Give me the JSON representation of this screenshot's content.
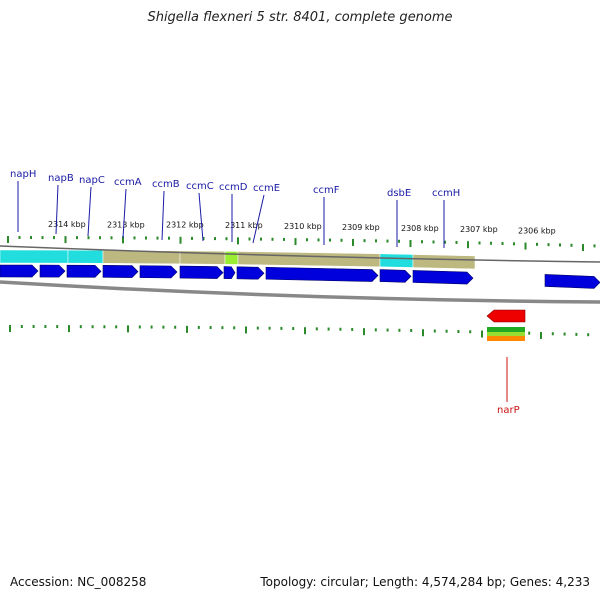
{
  "title": "Shigella flexneri 5 str. 8401, complete genome",
  "accession": "Accession: NC_008258",
  "summary": "Topology: circular; Length: 4,574,284 bp; Genes: 4,233",
  "forward_genes": [
    "napH",
    "napB",
    "napC",
    "ccmA",
    "ccmB",
    "ccmC",
    "ccmD",
    "ccmE",
    "ccmF",
    "dsbE",
    "ccmH"
  ],
  "reverse_genes": [
    "narP"
  ],
  "scale_ticks": [
    "2314 kbp",
    "2313 kbp",
    "2312 kbp",
    "2311 kbp",
    "2310 kbp",
    "2309 kbp",
    "2308 kbp",
    "2307 kbp",
    "2306 kbp"
  ],
  "colors": {
    "gene_blue": "#0000dd",
    "cds_tan": "#bdb880",
    "cds_cyan": "#22dddd",
    "cds_green": "#99ee33",
    "tick_green": "#2a8a2a",
    "reverse_red": "#ee0000",
    "label_blue": "#1a1aa6",
    "backbone": "#888888"
  }
}
